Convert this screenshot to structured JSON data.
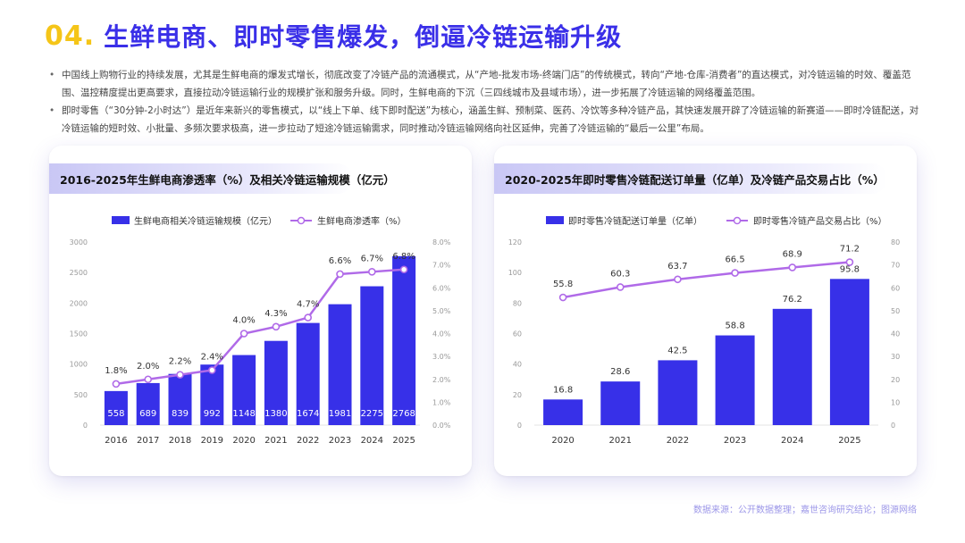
{
  "header": {
    "number": "04.",
    "title": "生鲜电商、即时零售爆发，倒逼冷链运输升级"
  },
  "bullets": [
    "中国线上购物行业的持续发展，尤其是生鲜电商的爆发式增长，彻底改变了冷链产品的流通模式，从“产地-批发市场-终端门店”的传统模式，转向“产地-仓库-消费者”的直达模式，对冷链运输的时效、覆盖范围、温控精度提出更高要求，直接拉动冷链运输行业的规模扩张和服务升级。同时，生鲜电商的下沉（三四线城市及县域市场），进一步拓展了冷链运输的网络覆盖范围。",
    "即时零售（“30分钟-2小时达”）是近年来新兴的零售模式，以“线上下单、线下即时配送”为核心，涵盖生鲜、预制菜、医药、冷饮等多种冷链产品，其快速发展开辟了冷链运输的新赛道——即时冷链配送，对冷链运输的短时效、小批量、多频次要求极高，进一步拉动了短途冷链运输需求，同时推动冷链运输网络向社区延伸，完善了冷链运输的“最后一公里”布局。"
  ],
  "source": "数据来源：公开数据整理；嘉世咨询研究结论；图源网络",
  "chart_data": [
    {
      "type": "bar",
      "title": "2016-2025年生鲜电商渗透率（%）及相关冷链运输规模（亿元）",
      "categories": [
        "2016",
        "2017",
        "2018",
        "2019",
        "2020",
        "2021",
        "2022",
        "2023",
        "2024",
        "2025"
      ],
      "series": [
        {
          "name": "生鲜电商相关冷链运输规模（亿元）",
          "type": "bar",
          "axis": "left",
          "color": "#3730e8",
          "values": [
            558,
            689,
            839,
            992,
            1148,
            1380,
            1674,
            1981,
            2275,
            2768
          ]
        },
        {
          "name": "生鲜电商渗透率（%）",
          "type": "line",
          "axis": "right",
          "color": "#b06ae8",
          "values": [
            1.8,
            2.0,
            2.2,
            2.4,
            4.0,
            4.3,
            4.7,
            6.6,
            6.7,
            6.8
          ]
        }
      ],
      "value_labels": {
        "bar": [
          "558",
          "689",
          "839",
          "992",
          "1148",
          "1380",
          "1674",
          "1981",
          "2275",
          "2768"
        ],
        "line": [
          "1.8%",
          "2.0%",
          "2.2%",
          "2.4%",
          "4.0%",
          "4.3%",
          "4.7%",
          "6.6%",
          "6.7%",
          "6.8%"
        ]
      },
      "ylim": [
        0,
        3000
      ],
      "y2lim": [
        0,
        8
      ],
      "yticks": [
        "0",
        "500",
        "1000",
        "1500",
        "2000",
        "2500",
        "3000"
      ],
      "y2ticks": [
        "0.0%",
        "1.0%",
        "2.0%",
        "3.0%",
        "4.0%",
        "5.0%",
        "6.0%",
        "7.0%",
        "8.0%"
      ],
      "legend": "top",
      "grid": false
    },
    {
      "type": "bar",
      "title": "2020-2025年即时零售冷链配送订单量（亿单）及冷链产品交易占比（%）",
      "categories": [
        "2020",
        "2021",
        "2022",
        "2023",
        "2024",
        "2025"
      ],
      "series": [
        {
          "name": "即时零售冷链配送订单量（亿单）",
          "type": "bar",
          "axis": "left",
          "color": "#3730e8",
          "values": [
            16.8,
            28.6,
            42.5,
            58.8,
            76.2,
            95.8
          ]
        },
        {
          "name": "即时零售冷链产品交易占比（%）",
          "type": "line",
          "axis": "right",
          "color": "#b06ae8",
          "values": [
            55.8,
            60.3,
            63.7,
            66.5,
            68.9,
            71.2
          ]
        }
      ],
      "value_labels": {
        "bar": [
          "16.8",
          "28.6",
          "42.5",
          "58.8",
          "76.2",
          "95.8"
        ],
        "line": [
          "55.8",
          "60.3",
          "63.7",
          "66.5",
          "68.9",
          "71.2"
        ]
      },
      "ylim": [
        0,
        120
      ],
      "y2lim": [
        0,
        80
      ],
      "yticks": [
        "0",
        "20",
        "40",
        "60",
        "80",
        "100",
        "120"
      ],
      "y2ticks": [
        "0",
        "10",
        "20",
        "30",
        "40",
        "50",
        "60",
        "70",
        "80"
      ],
      "legend": "top",
      "grid": false
    }
  ]
}
